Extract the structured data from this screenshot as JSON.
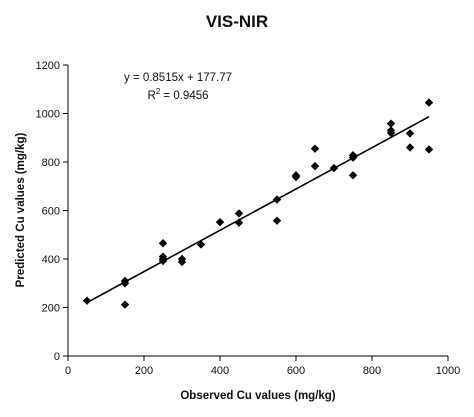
{
  "chart_data": {
    "type": "scatter",
    "title": "VIS-NIR",
    "xlabel": "Observed Cu values (mg/kg)",
    "ylabel": "Predicted Cu values (mg/kg)",
    "xlim": [
      0,
      1000
    ],
    "ylim": [
      0,
      1200
    ],
    "xticks": [
      "0",
      "200",
      "400",
      "600",
      "800",
      "1000"
    ],
    "yticks": [
      "0",
      "200",
      "400",
      "600",
      "800",
      "1000",
      "1200"
    ],
    "grid": false,
    "marker": "diamond",
    "marker_color": "#000000",
    "points": [
      {
        "x": 50,
        "y": 228
      },
      {
        "x": 150,
        "y": 310
      },
      {
        "x": 150,
        "y": 300
      },
      {
        "x": 150,
        "y": 212
      },
      {
        "x": 250,
        "y": 465
      },
      {
        "x": 250,
        "y": 410
      },
      {
        "x": 250,
        "y": 400
      },
      {
        "x": 250,
        "y": 392
      },
      {
        "x": 300,
        "y": 400
      },
      {
        "x": 300,
        "y": 388
      },
      {
        "x": 350,
        "y": 460
      },
      {
        "x": 400,
        "y": 552
      },
      {
        "x": 450,
        "y": 588
      },
      {
        "x": 450,
        "y": 550
      },
      {
        "x": 550,
        "y": 645
      },
      {
        "x": 550,
        "y": 558
      },
      {
        "x": 600,
        "y": 745
      },
      {
        "x": 600,
        "y": 738
      },
      {
        "x": 650,
        "y": 855
      },
      {
        "x": 650,
        "y": 783
      },
      {
        "x": 700,
        "y": 775
      },
      {
        "x": 750,
        "y": 828
      },
      {
        "x": 750,
        "y": 818
      },
      {
        "x": 750,
        "y": 745
      },
      {
        "x": 850,
        "y": 958
      },
      {
        "x": 850,
        "y": 930
      },
      {
        "x": 850,
        "y": 920
      },
      {
        "x": 900,
        "y": 918
      },
      {
        "x": 900,
        "y": 860
      },
      {
        "x": 950,
        "y": 1045
      },
      {
        "x": 950,
        "y": 852
      }
    ],
    "trendline": {
      "slope": 0.8515,
      "intercept": 177.77,
      "x_range": [
        50,
        950
      ],
      "equation": "y = 0.8515x + 177.77",
      "r2_prefix": "R",
      "r2_sup": "2",
      "r2_value": " = 0.9456"
    }
  }
}
